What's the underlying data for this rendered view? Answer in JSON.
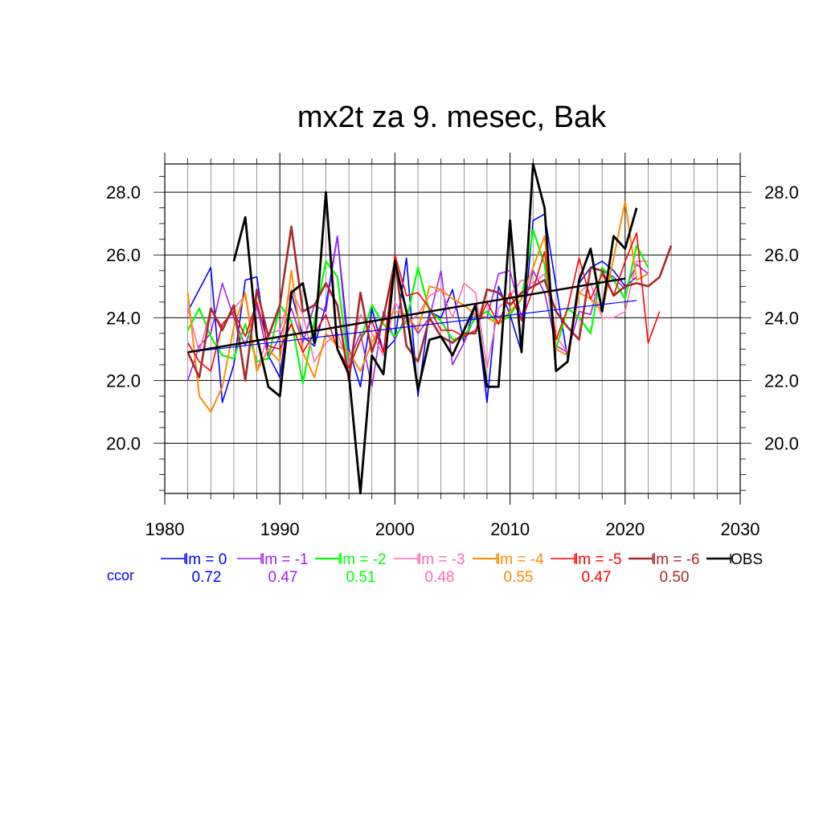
{
  "chart_data": {
    "type": "line",
    "title": "mx2t za 9. mesec, Bak",
    "xlabel": "",
    "ylabel": "",
    "xlim": [
      1980,
      2030
    ],
    "ylim": [
      18.4,
      28.9
    ],
    "x_ticks": [
      1980,
      1990,
      2000,
      2010,
      2020,
      2030
    ],
    "x_tick_labels": [
      "1980",
      "1990",
      "2000",
      "2010",
      "2020",
      "2030"
    ],
    "y_ticks": [
      20,
      22,
      24,
      26,
      28
    ],
    "y_tick_labels": [
      "20.0",
      "22.0",
      "24.0",
      "26.0",
      "28.0"
    ],
    "grid": true,
    "legend_placement": "bottom",
    "ccor_label": "ccor",
    "ccor_color": "#0000ff",
    "series": [
      {
        "name": "lm = 0",
        "color": "#0000ff",
        "width": 1.6,
        "ccor": "0.72",
        "start": 1982,
        "values": [
          24.2,
          24.9,
          25.6,
          21.3,
          22.5,
          25.2,
          25.3,
          22.8,
          22.1,
          24.8,
          23.4,
          23.1,
          24.4,
          26.6,
          23.0,
          21.8,
          24.3,
          22.9,
          23.3,
          25.9,
          21.5,
          24.2,
          24.0,
          24.9,
          23.2,
          24.4,
          21.3,
          25.0,
          24.1,
          22.9,
          27.1,
          27.3,
          25.0,
          22.7,
          25.1,
          25.6,
          25.8,
          25.5,
          25.0,
          25.3
        ]
      },
      {
        "name": "lm = -1",
        "color": "#a020f0",
        "width": 1.6,
        "ccor": "0.47",
        "start": 1982,
        "values": [
          22.0,
          23.1,
          23.5,
          25.1,
          24.0,
          23.1,
          24.4,
          22.7,
          23.4,
          24.3,
          23.2,
          24.4,
          24.2,
          26.6,
          22.6,
          23.5,
          21.8,
          24.2,
          23.3,
          24.1,
          23.5,
          24.0,
          25.5,
          22.5,
          23.2,
          24.1,
          24.0,
          25.4,
          25.5,
          24.0,
          25.5,
          24.8,
          23.1,
          22.9,
          24.2,
          24.1,
          25.5,
          25.3,
          24.9,
          25.7,
          25.4
        ]
      },
      {
        "name": "lm = -2",
        "color": "#00ff00",
        "width": 2.2,
        "ccor": "0.51",
        "start": 1982,
        "values": [
          23.6,
          24.3,
          23.4,
          22.8,
          22.7,
          23.8,
          22.6,
          22.7,
          24.4,
          23.9,
          21.9,
          23.9,
          25.8,
          25.3,
          22.4,
          23.3,
          24.4,
          23.8,
          23.4,
          23.9,
          25.6,
          24.2,
          23.9,
          23.3,
          23.4,
          24.0,
          24.2,
          23.8,
          24.1,
          24.6,
          26.8,
          25.7,
          23.0,
          24.3,
          24.0,
          23.5,
          25.6,
          25.2,
          24.6,
          26.3,
          25.6
        ]
      },
      {
        "name": "lm = -3",
        "color": "#ff69b4",
        "width": 1.6,
        "ccor": "0.48",
        "start": 1982,
        "values": [
          24.3,
          22.9,
          24.3,
          23.7,
          24.3,
          24.7,
          22.3,
          23.5,
          23.6,
          24.9,
          24.1,
          22.6,
          23.2,
          23.5,
          22.5,
          24.1,
          23.5,
          22.8,
          24.5,
          23.8,
          24.1,
          24.7,
          24.9,
          24.0,
          25.1,
          24.8,
          22.4,
          24.3,
          24.7,
          25.2,
          25.1,
          25.4,
          23.4,
          22.9,
          24.8,
          25.1,
          24.0,
          24.0,
          24.2,
          25.8,
          25.8
        ]
      },
      {
        "name": "lm = -4",
        "color": "#ff8c00",
        "width": 2.0,
        "ccor": "0.55",
        "start": 1982,
        "values": [
          24.8,
          21.5,
          21.0,
          21.8,
          23.7,
          24.8,
          22.3,
          23.0,
          22.6,
          25.5,
          22.9,
          22.1,
          23.5,
          23.1,
          22.9,
          22.3,
          23.2,
          23.9,
          24.2,
          24.1,
          23.6,
          25.0,
          24.9,
          24.6,
          24.4,
          24.1,
          24.0,
          23.8,
          24.2,
          24.6,
          25.6,
          26.6,
          23.0,
          22.8,
          24.8,
          24.6,
          24.2,
          25.9,
          27.7,
          25.2,
          25.4
        ]
      },
      {
        "name": "lm = -5",
        "color": "#ff0000",
        "width": 1.6,
        "ccor": "0.47",
        "start": 1982,
        "values": [
          23.2,
          22.6,
          22.3,
          23.8,
          24.2,
          23.4,
          24.5,
          23.1,
          23.0,
          23.8,
          22.9,
          23.5,
          24.1,
          23.0,
          22.4,
          23.3,
          23.9,
          22.9,
          26.0,
          24.7,
          24.8,
          24.3,
          23.6,
          23.6,
          23.4,
          23.6,
          24.5,
          23.8,
          24.8,
          23.9,
          24.9,
          26.1,
          23.3,
          24.3,
          25.9,
          24.6,
          25.4,
          24.7,
          25.8,
          26.7,
          23.2,
          24.2
        ]
      },
      {
        "name": "lm = -6",
        "color": "#a52a2a",
        "width": 2.6,
        "ccor": "0.50",
        "start": 1982,
        "values": [
          22.9,
          22.1,
          24.3,
          23.6,
          24.4,
          22.0,
          24.9,
          23.4,
          24.4,
          26.9,
          24.2,
          24.4,
          25.1,
          24.4,
          22.0,
          24.8,
          22.9,
          24.0,
          25.8,
          23.1,
          22.6,
          24.0,
          23.4,
          23.2,
          23.5,
          23.5,
          24.9,
          24.8,
          24.4,
          24.8,
          25.0,
          25.2,
          24.2,
          23.7,
          23.3,
          25.6,
          25.5,
          24.7,
          25.0,
          25.1,
          25.0,
          25.3,
          26.3
        ]
      },
      {
        "name": "OBS",
        "color": "#000000",
        "width": 2.8,
        "ccor": "",
        "start": 1986,
        "values": [
          25.8,
          27.2,
          23.4,
          21.8,
          21.5,
          24.8,
          25.1,
          23.2,
          28.0,
          23.0,
          22.2,
          18.4,
          22.8,
          22.2,
          25.8,
          24.2,
          21.7,
          23.3,
          23.4,
          22.8,
          23.6,
          24.4,
          21.8,
          21.8,
          27.1,
          22.9,
          28.9,
          27.5,
          22.3,
          22.6,
          25.2,
          26.2,
          24.2,
          26.6,
          26.2,
          27.5
        ]
      }
    ],
    "trend_lines": [
      {
        "color": "#0000ff",
        "width": 1.2,
        "x": [
          1982,
          2021
        ],
        "y": [
          22.9,
          24.55
        ]
      },
      {
        "color": "#000000",
        "width": 2.4,
        "x": [
          1982,
          2020
        ],
        "y": [
          22.9,
          25.25
        ]
      }
    ]
  }
}
